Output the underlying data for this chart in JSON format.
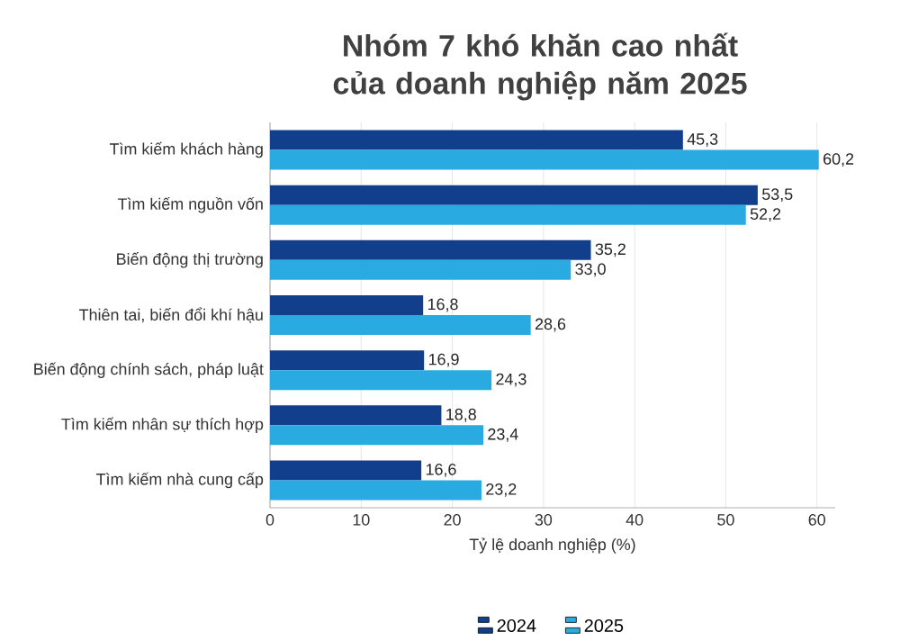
{
  "chart_data": {
    "type": "bar",
    "orientation": "horizontal",
    "title": "Nhóm 7 khó khăn cao nhất của doanh nghiệp năm 2025",
    "categories": [
      "Tìm kiếm khách hàng",
      "Tìm kiếm nguồn vốn",
      "Biến động thị trường",
      "Thiên tai, biến đổi khí hậu",
      "Biến động chính sách, pháp luật",
      "Tìm kiếm nhân sự thích hợp",
      "Tìm kiếm nhà cung cấp"
    ],
    "series": [
      {
        "name": "2024",
        "color": "#123f8c",
        "values": [
          45.3,
          53.5,
          35.2,
          16.8,
          16.9,
          18.8,
          16.6
        ],
        "value_labels": [
          "45,3",
          "53,5",
          "35,2",
          "16,8",
          "16,9",
          "18,8",
          "16,6"
        ]
      },
      {
        "name": "2025",
        "color": "#29abe2",
        "values": [
          60.2,
          52.2,
          33.0,
          28.6,
          24.3,
          23.4,
          23.2
        ],
        "value_labels": [
          "60,2",
          "52,2",
          "33,0",
          "28,6",
          "24,3",
          "23,4",
          "23,2"
        ]
      }
    ],
    "xlabel": "Tỷ lệ doanh nghiệp (%)",
    "xlim": [
      0,
      62
    ],
    "xticks": [
      0,
      10,
      20,
      30,
      40,
      50,
      60
    ],
    "grid": "x",
    "legend": "bottom"
  }
}
